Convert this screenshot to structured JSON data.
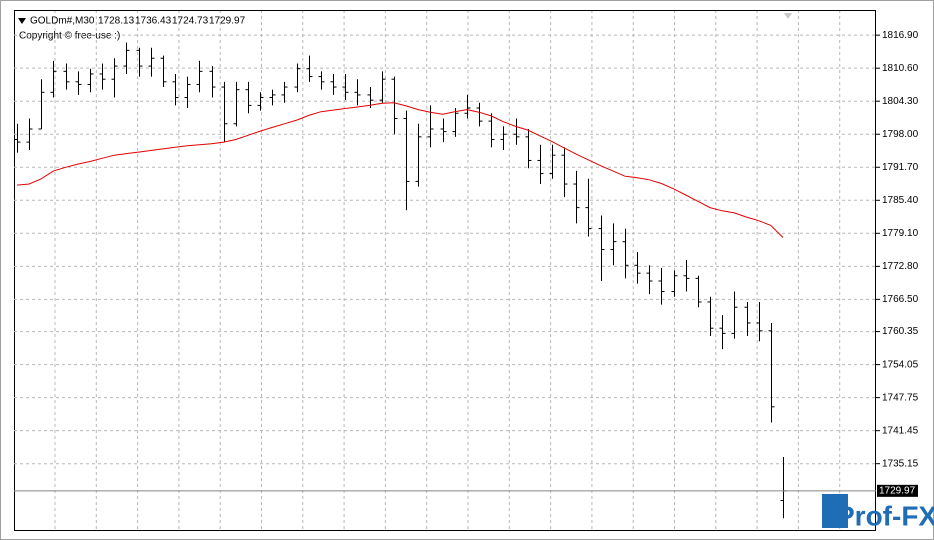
{
  "chart_data": {
    "type": "ohlc",
    "symbol": "GOLDm#,M30",
    "copyright": "Copyright © free-use :)",
    "watermark": "Prof-FX",
    "color": "#000000",
    "ohlc": {
      "open": [
        1797,
        1796.5,
        1799,
        1806,
        1810,
        1808,
        1807.5,
        1809.5,
        1808.5,
        1811,
        1814,
        1811,
        1812.5,
        1808,
        1805,
        1807.5,
        1810,
        1807,
        1800,
        1806.5,
        1803.5,
        1805,
        1805.5,
        1807,
        1810.5,
        1809,
        1808,
        1807,
        1806,
        1805.5,
        1804.5,
        1808.5,
        1801,
        1789,
        1797.5,
        1799,
        1798.5,
        1802,
        1803,
        1800.5,
        1797,
        1798,
        1797.5,
        1793,
        1790.5,
        1794,
        1788.5,
        1784,
        1780,
        1776,
        1777.5,
        1773,
        1771.5,
        1770,
        1768,
        1771,
        1770.5,
        1766,
        1761,
        1760,
        1765,
        1762,
        1760.5,
        1728.13
      ],
      "high": [
        1800,
        1801,
        1808.5,
        1812,
        1811.5,
        1810,
        1810.5,
        1811.5,
        1812.5,
        1815.5,
        1814.5,
        1814.5,
        1813,
        1809.5,
        1809,
        1812,
        1811,
        1808,
        1808,
        1808,
        1806,
        1806.5,
        1808,
        1811.5,
        1813,
        1810,
        1809.5,
        1809.5,
        1808.5,
        1807,
        1810,
        1809,
        1802.5,
        1800,
        1803.5,
        1801,
        1803,
        1805.5,
        1804,
        1802,
        1799.5,
        1801,
        1799,
        1796,
        1796,
        1795.5,
        1791,
        1789.5,
        1782.5,
        1781,
        1780,
        1775.5,
        1773,
        1772.5,
        1772,
        1774,
        1771,
        1767,
        1763.5,
        1768,
        1766,
        1766,
        1762,
        1736.43
      ],
      "low": [
        1794.5,
        1795,
        1799,
        1805,
        1806.5,
        1805.5,
        1806,
        1806.5,
        1805,
        1809.5,
        1809,
        1809,
        1807,
        1803.5,
        1803,
        1806,
        1805,
        1796.5,
        1799.5,
        1802,
        1802.5,
        1803.5,
        1804,
        1806,
        1808,
        1806.5,
        1805.5,
        1804.5,
        1803.5,
        1803,
        1804,
        1798,
        1783.5,
        1788,
        1795.5,
        1796.5,
        1797.5,
        1801,
        1799.5,
        1795.5,
        1795,
        1796,
        1791.5,
        1788.5,
        1789.5,
        1786,
        1781,
        1778.5,
        1770,
        1773,
        1770.5,
        1769.5,
        1767.5,
        1765.5,
        1767,
        1768,
        1765,
        1759.5,
        1757,
        1759,
        1759.5,
        1758.5,
        1743,
        1724.73
      ],
      "close": [
        1796.5,
        1799,
        1806,
        1810,
        1808,
        1807.5,
        1809.5,
        1808.5,
        1811,
        1814,
        1811,
        1812.5,
        1808,
        1805,
        1807.5,
        1810,
        1807,
        1800,
        1806.5,
        1803.5,
        1805,
        1805.5,
        1807,
        1810.5,
        1809,
        1808,
        1807,
        1806,
        1805.5,
        1804.5,
        1808.5,
        1801,
        1789,
        1797.5,
        1799,
        1798.5,
        1802,
        1803,
        1800.5,
        1797,
        1798,
        1797.5,
        1793,
        1790.5,
        1794,
        1788.5,
        1784,
        1780,
        1776,
        1777.5,
        1773,
        1771.5,
        1770,
        1768,
        1771,
        1770.5,
        1766,
        1761,
        1760,
        1765,
        1762,
        1760.5,
        1746,
        1729.97
      ]
    },
    "ma": {
      "color": "#e00000",
      "values": [
        1788.3,
        1788.5,
        1789.5,
        1791,
        1791.7,
        1792.3,
        1792.8,
        1793.4,
        1794,
        1794.3,
        1794.6,
        1794.9,
        1795.2,
        1795.5,
        1795.8,
        1796,
        1796.2,
        1796.5,
        1797,
        1797.8,
        1798.6,
        1799.3,
        1800,
        1800.7,
        1801.6,
        1802.3,
        1802.6,
        1802.9,
        1803.2,
        1803.5,
        1803.9,
        1804,
        1803.4,
        1802.7,
        1802.2,
        1801.8,
        1802.3,
        1802.7,
        1802.2,
        1801.5,
        1800.4,
        1799.5,
        1798.8,
        1797.7,
        1796.6,
        1795.4,
        1794.2,
        1793.1,
        1792,
        1791,
        1790,
        1789.7,
        1789.3,
        1788.6,
        1787.6,
        1786.4,
        1785.2,
        1784,
        1783.4,
        1783,
        1782.2,
        1781.5,
        1780.6,
        1778.3
      ]
    },
    "ylim": [
      1722.5,
      1821.7
    ],
    "yticks": [
      {
        "value": 1816.9,
        "label": "1816.90"
      },
      {
        "value": 1810.6,
        "label": "1810.60"
      },
      {
        "value": 1804.3,
        "label": "1804.30"
      },
      {
        "value": 1798,
        "label": "1798.00"
      },
      {
        "value": 1791.7,
        "label": "1791.70"
      },
      {
        "value": 1785.4,
        "label": "1785.40"
      },
      {
        "value": 1779.1,
        "label": "1779.10"
      },
      {
        "value": 1772.8,
        "label": "1772.80"
      },
      {
        "value": 1766.5,
        "label": "1766.50"
      },
      1760.35,
      1754.05,
      1747.75,
      1741.45,
      1735.15
    ],
    "grid": true
  }
}
